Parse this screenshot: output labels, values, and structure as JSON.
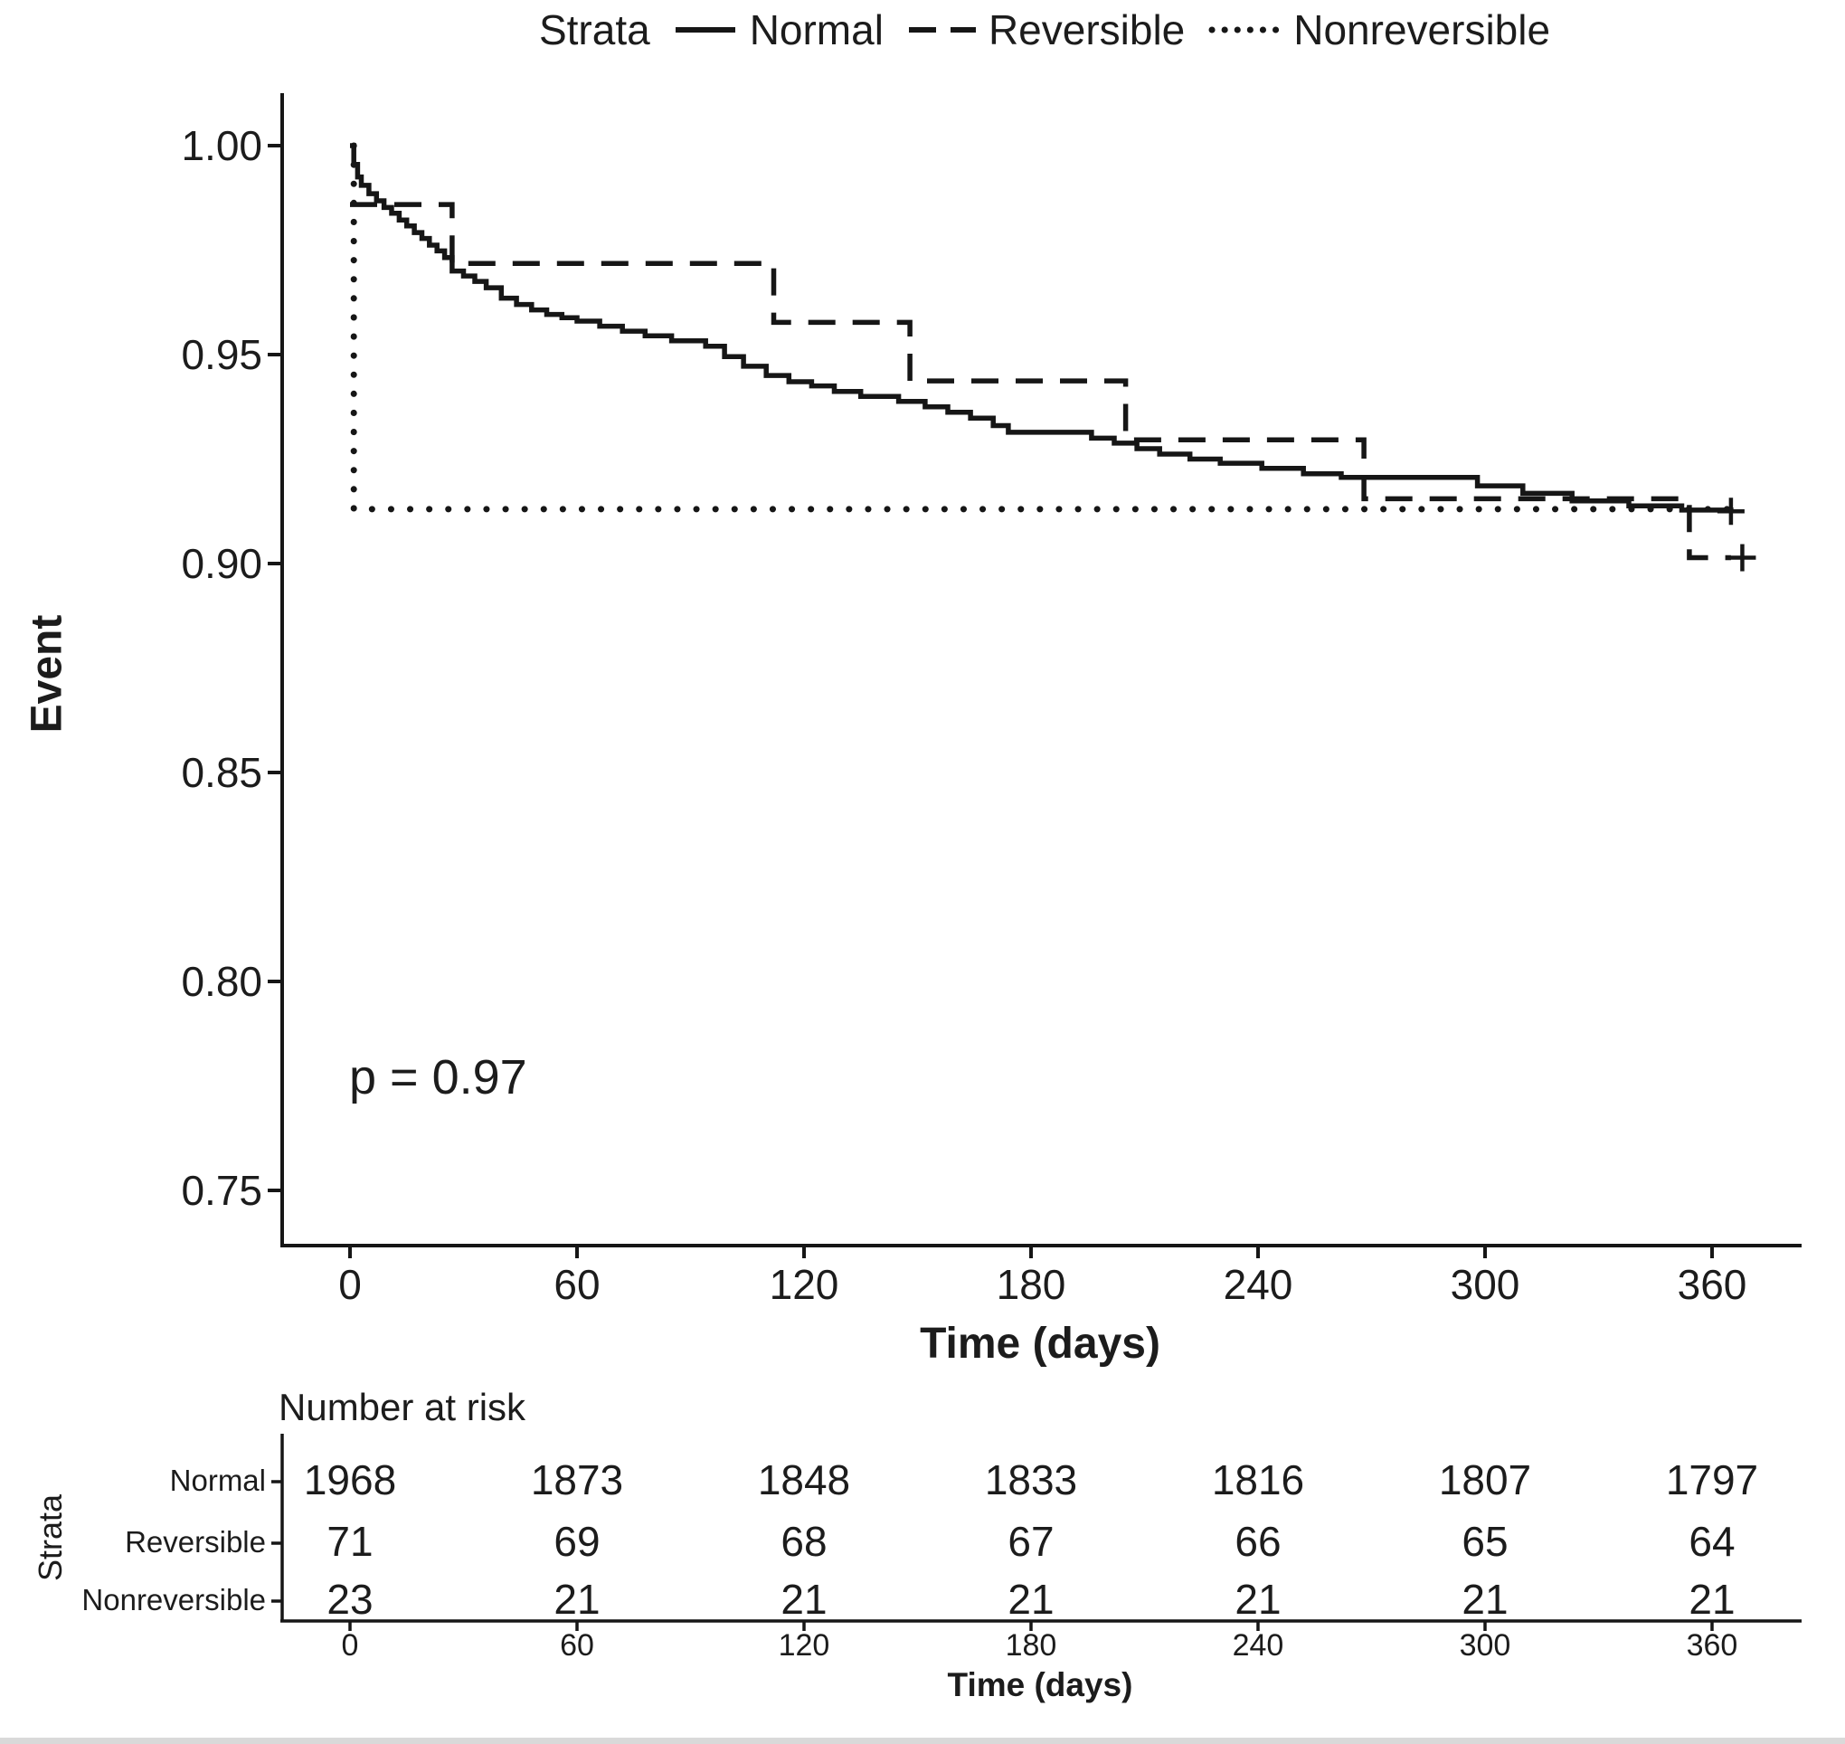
{
  "colors": {
    "line": "#161616",
    "text": "#1c1c1c",
    "background": "#ffffff",
    "bottom_strip": "#d9d9d9"
  },
  "legend": {
    "title": "Strata",
    "items": [
      {
        "label": "Normal",
        "line_style": "solid"
      },
      {
        "label": "Reversible",
        "line_style": "dashed"
      },
      {
        "label": "Nonreversible",
        "line_style": "dotted"
      }
    ]
  },
  "y_axis": {
    "label": "Event",
    "ticks": [
      "1.00",
      "0.95",
      "0.90",
      "0.85",
      "0.80",
      "0.75"
    ]
  },
  "x_axis": {
    "label": "Time (days)",
    "ticks": [
      "0",
      "60",
      "120",
      "180",
      "240",
      "300",
      "360"
    ]
  },
  "annotation": {
    "p_value": "p = 0.97"
  },
  "risk_table": {
    "title": "Number at risk",
    "axis_label": "Strata",
    "x_label": "Time (days)",
    "x_ticks": [
      "0",
      "60",
      "120",
      "180",
      "240",
      "300",
      "360"
    ],
    "rows": [
      {
        "label": "Normal",
        "values": [
          "1968",
          "1873",
          "1848",
          "1833",
          "1816",
          "1807",
          "1797"
        ]
      },
      {
        "label": "Reversible",
        "values": [
          "71",
          "69",
          "68",
          "67",
          "66",
          "65",
          "64"
        ]
      },
      {
        "label": "Nonreversible",
        "values": [
          "23",
          "21",
          "21",
          "21",
          "21",
          "21",
          "21"
        ]
      }
    ]
  },
  "chart_data": {
    "type": "line",
    "subtype": "kaplan-meier-step",
    "xlabel": "Time (days)",
    "ylabel": "Event",
    "xlim": [
      -18,
      383
    ],
    "ylim": [
      0.737,
      1.013
    ],
    "x_ticks": [
      0,
      60,
      120,
      180,
      240,
      300,
      360
    ],
    "y_ticks": [
      1.0,
      0.95,
      0.9,
      0.85,
      0.8,
      0.75
    ],
    "grid": false,
    "legend_position": "top",
    "annotations": [
      {
        "text": "p = 0.97",
        "x": 0,
        "y": 0.778
      }
    ],
    "series": [
      {
        "name": "Normal",
        "line_style": "solid",
        "color": "#161616",
        "step": true,
        "points": [
          [
            0,
            1.0
          ],
          [
            1,
            0.9955
          ],
          [
            2,
            0.9925
          ],
          [
            3,
            0.9905
          ],
          [
            5,
            0.9885
          ],
          [
            7,
            0.9868
          ],
          [
            9,
            0.9852
          ],
          [
            11,
            0.9838
          ],
          [
            13,
            0.9822
          ],
          [
            15,
            0.9808
          ],
          [
            17,
            0.9792
          ],
          [
            19,
            0.9778
          ],
          [
            21,
            0.9762
          ],
          [
            23,
            0.9748
          ],
          [
            25,
            0.9732
          ],
          [
            27,
            0.97
          ],
          [
            30,
            0.9688
          ],
          [
            33,
            0.9675
          ],
          [
            36,
            0.966
          ],
          [
            40,
            0.9635
          ],
          [
            44,
            0.962
          ],
          [
            48,
            0.9607
          ],
          [
            52,
            0.9596
          ],
          [
            56,
            0.9588
          ],
          [
            60,
            0.958
          ],
          [
            66,
            0.9568
          ],
          [
            72,
            0.9556
          ],
          [
            78,
            0.9545
          ],
          [
            85,
            0.9533
          ],
          [
            94,
            0.952
          ],
          [
            99,
            0.9495
          ],
          [
            104,
            0.9472
          ],
          [
            110,
            0.945
          ],
          [
            116,
            0.9435
          ],
          [
            122,
            0.9425
          ],
          [
            128,
            0.9412
          ],
          [
            135,
            0.94
          ],
          [
            145,
            0.9388
          ],
          [
            152,
            0.9375
          ],
          [
            158,
            0.9362
          ],
          [
            164,
            0.9348
          ],
          [
            170,
            0.933
          ],
          [
            174,
            0.9314
          ],
          [
            196,
            0.93
          ],
          [
            202,
            0.9288
          ],
          [
            208,
            0.9275
          ],
          [
            214,
            0.9262
          ],
          [
            222,
            0.925
          ],
          [
            230,
            0.924
          ],
          [
            241,
            0.9228
          ],
          [
            252,
            0.9215
          ],
          [
            262,
            0.9206
          ],
          [
            298,
            0.9186
          ],
          [
            310,
            0.9168
          ],
          [
            323,
            0.915
          ],
          [
            338,
            0.9138
          ],
          [
            352,
            0.9128
          ],
          [
            365,
            0.9125
          ]
        ],
        "censored": [
          [
            365,
            0.9125
          ]
        ]
      },
      {
        "name": "Reversible",
        "line_style": "dashed",
        "color": "#161616",
        "step": true,
        "points": [
          [
            0,
            0.9859
          ],
          [
            27,
            0.9718
          ],
          [
            112,
            0.9577
          ],
          [
            148,
            0.9437
          ],
          [
            205,
            0.9296
          ],
          [
            268,
            0.9155
          ],
          [
            354,
            0.9014
          ],
          [
            365,
            0.9014
          ]
        ],
        "censored": [
          [
            368,
            0.9014
          ]
        ]
      },
      {
        "name": "Nonreversible",
        "line_style": "dotted",
        "color": "#161616",
        "step": true,
        "points": [
          [
            1,
            1.0
          ],
          [
            1,
            0.913
          ],
          [
            365,
            0.913
          ]
        ],
        "censored": []
      }
    ]
  }
}
